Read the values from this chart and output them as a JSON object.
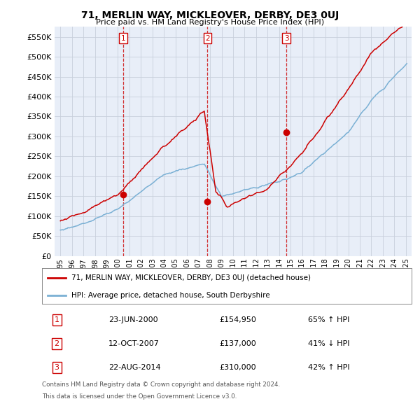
{
  "title": "71, MERLIN WAY, MICKLEOVER, DERBY, DE3 0UJ",
  "subtitle": "Price paid vs. HM Land Registry's House Price Index (HPI)",
  "hpi_label": "HPI: Average price, detached house, South Derbyshire",
  "property_label": "71, MERLIN WAY, MICKLEOVER, DERBY, DE3 0UJ (detached house)",
  "transactions": [
    {
      "num": 1,
      "date": "23-JUN-2000",
      "price": 154950,
      "pct": "65% ↑ HPI",
      "year": 2000.47
    },
    {
      "num": 2,
      "date": "12-OCT-2007",
      "price": 137000,
      "pct": "41% ↓ HPI",
      "year": 2007.78
    },
    {
      "num": 3,
      "date": "22-AUG-2014",
      "price": 310000,
      "pct": "42% ↑ HPI",
      "year": 2014.64
    }
  ],
  "footnote1": "Contains HM Land Registry data © Crown copyright and database right 2024.",
  "footnote2": "This data is licensed under the Open Government Licence v3.0.",
  "ylim": [
    0,
    575000
  ],
  "yticks": [
    0,
    50000,
    100000,
    150000,
    200000,
    250000,
    300000,
    350000,
    400000,
    450000,
    500000,
    550000
  ],
  "xlim_start": 1994.5,
  "xlim_end": 2025.5,
  "red_color": "#cc0000",
  "blue_color": "#7ab0d4",
  "bg_color": "#e8eef8",
  "grid_color": "#c8d0dc"
}
